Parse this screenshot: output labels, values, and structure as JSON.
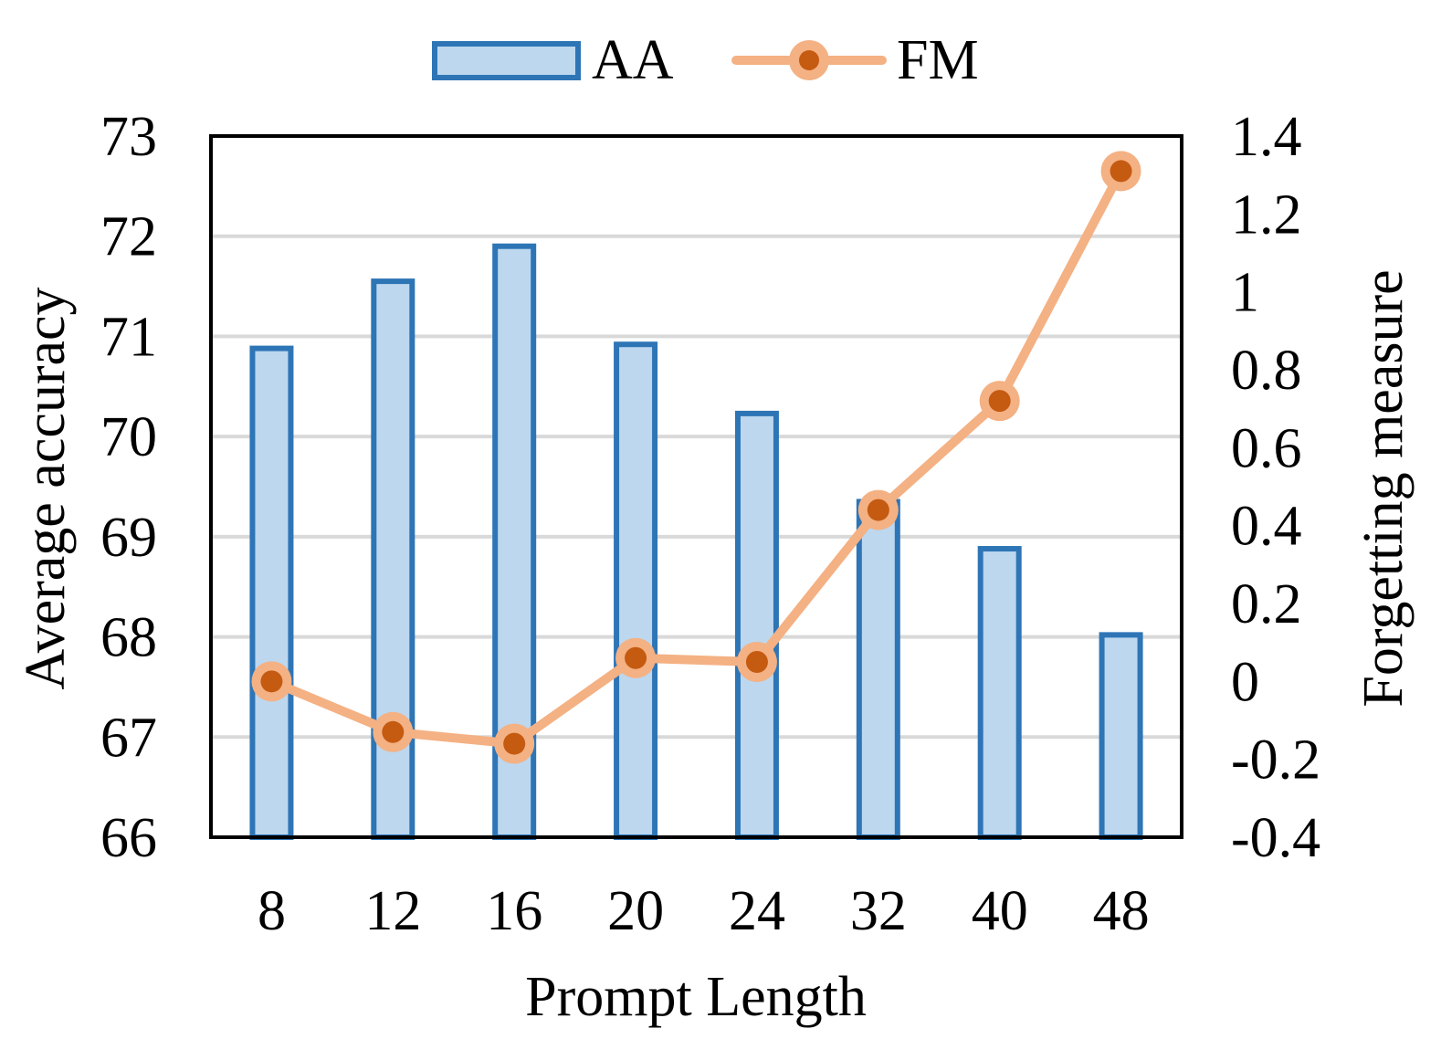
{
  "chart_data": {
    "type": "bar",
    "combo": "bar+line",
    "categories": [
      "8",
      "12",
      "16",
      "20",
      "24",
      "32",
      "40",
      "48"
    ],
    "series": [
      {
        "name": "AA",
        "type": "bar",
        "axis": "left",
        "values": [
          70.88,
          71.55,
          71.9,
          70.92,
          70.23,
          69.35,
          68.88,
          68.02
        ]
      },
      {
        "name": "FM",
        "type": "line",
        "axis": "right",
        "values": [
          0.0,
          -0.13,
          -0.16,
          0.06,
          0.05,
          0.44,
          0.72,
          1.31
        ]
      }
    ],
    "xlabel": "Prompt Length",
    "ylabel": "Average accuracy",
    "y2label": "Forgetting measure",
    "ylim": [
      66,
      73
    ],
    "y2lim": [
      -0.4,
      1.4
    ],
    "yticks": [
      "66",
      "67",
      "68",
      "69",
      "70",
      "71",
      "72",
      "73"
    ],
    "y2ticks": [
      "-0.4",
      "-0.2",
      "0",
      "0.2",
      "0.4",
      "0.6",
      "0.8",
      "1",
      "1.2",
      "1.4"
    ],
    "grid": true,
    "legend": "top-center"
  },
  "colors": {
    "bar_fill": "#bdd7ee",
    "bar_edge": "#2e75b6",
    "line": "#f4b183",
    "marker_fill": "#c55a11",
    "grid": "#d9d9d9",
    "axes": "#000000"
  }
}
